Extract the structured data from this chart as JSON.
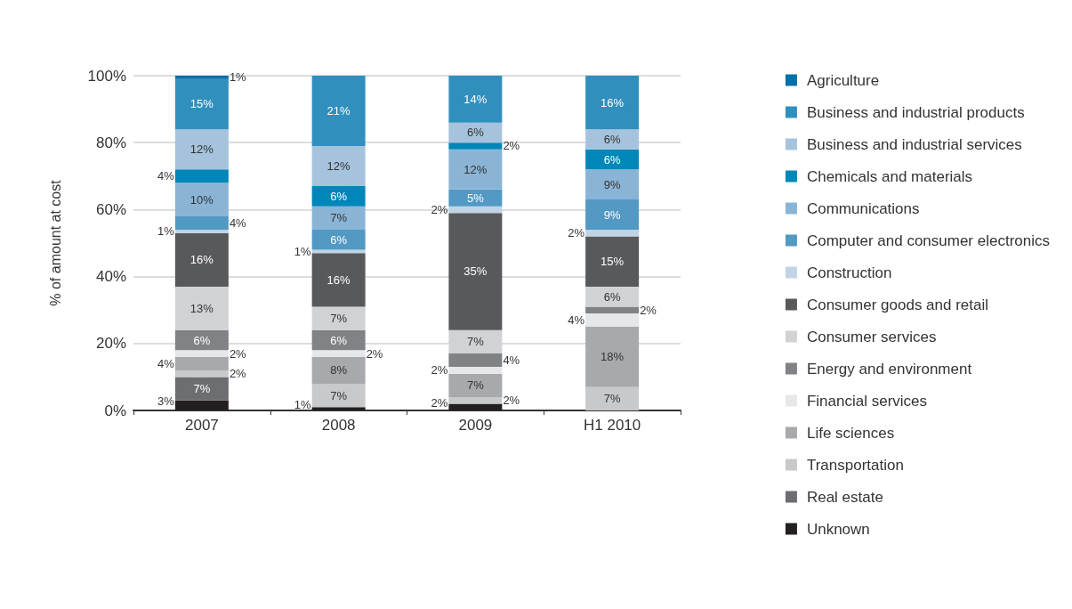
{
  "chart_data": {
    "type": "bar",
    "stacked": true,
    "ylabel": "% of amount at cost",
    "categories": [
      "2007",
      "2008",
      "2009",
      "H1 2010"
    ],
    "ylim": [
      0,
      100
    ],
    "yticks": [
      {
        "value": 0,
        "label": "0%"
      },
      {
        "value": 20,
        "label": "20%"
      },
      {
        "value": 40,
        "label": "40%"
      },
      {
        "value": 60,
        "label": "60%"
      },
      {
        "value": 80,
        "label": "80%"
      },
      {
        "value": 100,
        "label": "100%"
      }
    ],
    "grid": "y",
    "legend": "right",
    "series": [
      {
        "name": "Unknown",
        "color": "#231f20",
        "values": [
          3,
          1,
          2,
          null
        ],
        "value_labels": [
          "3%",
          "1%",
          "2%",
          null
        ]
      },
      {
        "name": "Real estate",
        "color": "#6d6e71",
        "values": [
          7,
          null,
          null,
          null
        ],
        "value_labels": [
          "7%",
          null,
          null,
          null
        ]
      },
      {
        "name": "Transportation",
        "color": "#c8c9cb",
        "values": [
          2,
          7,
          2,
          7
        ],
        "value_labels": [
          "2%",
          "7%",
          "2%",
          "7%"
        ]
      },
      {
        "name": "Life sciences",
        "color": "#a7a9ac",
        "values": [
          4,
          8,
          7,
          18
        ],
        "value_labels": [
          "4%",
          "8%",
          "7%",
          "18%"
        ]
      },
      {
        "name": "Financial services",
        "color": "#e6e7e8",
        "values": [
          2,
          2,
          2,
          4
        ],
        "value_labels": [
          "2%",
          "2%",
          "2%",
          "4%"
        ]
      },
      {
        "name": "Energy and environment",
        "color": "#808285",
        "values": [
          6,
          6,
          4,
          2
        ],
        "value_labels": [
          "6%",
          "6%",
          "4%",
          "2%"
        ]
      },
      {
        "name": "Consumer services",
        "color": "#d1d2d4",
        "values": [
          13,
          7,
          7,
          6
        ],
        "value_labels": [
          "13%",
          "7%",
          "7%",
          "6%"
        ]
      },
      {
        "name": "Consumer goods and retail",
        "color": "#58595b",
        "values": [
          16,
          16,
          35,
          15
        ],
        "value_labels": [
          "16%",
          "16%",
          "35%",
          "15%"
        ]
      },
      {
        "name": "Construction",
        "color": "#c0d4e6",
        "values": [
          1,
          1,
          2,
          2
        ],
        "value_labels": [
          "1%",
          "1%",
          "2%",
          "2%"
        ]
      },
      {
        "name": "Computer and consumer electronics",
        "color": "#5299c4",
        "values": [
          4,
          6,
          5,
          9
        ],
        "value_labels": [
          "4%",
          "6%",
          "5%",
          "9%"
        ]
      },
      {
        "name": "Communications",
        "color": "#8ab4d6",
        "values": [
          10,
          7,
          12,
          9
        ],
        "value_labels": [
          "10%",
          "7%",
          "12%",
          "9%"
        ]
      },
      {
        "name": "Chemicals and materials",
        "color": "#0086b8",
        "values": [
          4,
          6,
          2,
          6
        ],
        "value_labels": [
          "4%",
          "6%",
          "2%",
          "6%"
        ]
      },
      {
        "name": "Business and industrial services",
        "color": "#a5c3dc",
        "values": [
          12,
          12,
          6,
          6
        ],
        "value_labels": [
          "12%",
          "12%",
          "6%",
          "6%"
        ]
      },
      {
        "name": "Business and industrial products",
        "color": "#318fbd",
        "values": [
          15,
          21,
          14,
          16
        ],
        "value_labels": [
          "15%",
          "21%",
          "14%",
          "16%"
        ]
      },
      {
        "name": "Agriculture",
        "color": "#0070a8",
        "values": [
          1,
          null,
          null,
          null
        ],
        "value_labels": [
          "1%",
          null,
          null,
          null
        ]
      }
    ]
  }
}
